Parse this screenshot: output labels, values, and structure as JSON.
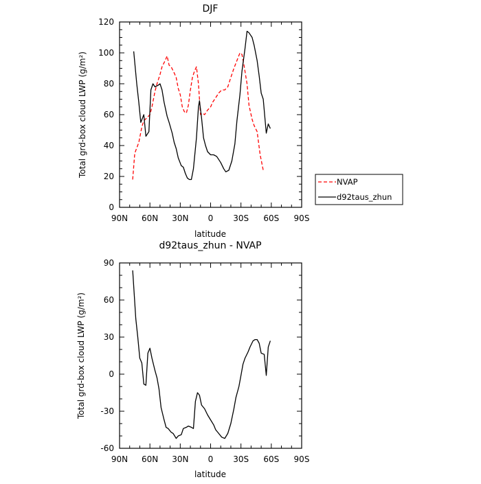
{
  "chart_data": [
    {
      "type": "line",
      "title": "DJF",
      "xlabel": "latitude",
      "ylabel": "Total grd-box cloud LWP (g/m²)",
      "xlim": [
        90,
        -90
      ],
      "ylim": [
        0,
        120
      ],
      "xticks": [
        90,
        60,
        30,
        0,
        -30,
        -60,
        -90
      ],
      "xticklabels": [
        "90N",
        "60N",
        "30N",
        "0",
        "30S",
        "60S",
        "90S"
      ],
      "yticks": [
        0,
        20,
        40,
        60,
        80,
        100,
        120
      ],
      "yticklabels": [
        "0",
        "20",
        "40",
        "60",
        "80",
        "100",
        "120"
      ],
      "grid": false,
      "legend_position": "right",
      "series": [
        {
          "name": "NVAP",
          "color": "#ff0000",
          "dash": "dashed",
          "points": [
            [
              77,
              18
            ],
            [
              75,
              35
            ],
            [
              71,
              42
            ],
            [
              68,
              52
            ],
            [
              66,
              56
            ],
            [
              63,
              58
            ],
            [
              60,
              60
            ],
            [
              58,
              65
            ],
            [
              55,
              75
            ],
            [
              53,
              80
            ],
            [
              50,
              86
            ],
            [
              48,
              91
            ],
            [
              45,
              95
            ],
            [
              43,
              98
            ],
            [
              41,
              92
            ],
            [
              39,
              91
            ],
            [
              36,
              87
            ],
            [
              34,
              84
            ],
            [
              32,
              77
            ],
            [
              30,
              73
            ],
            [
              28,
              65
            ],
            [
              26,
              62
            ],
            [
              24,
              61
            ],
            [
              22,
              66
            ],
            [
              20,
              76
            ],
            [
              18,
              84
            ],
            [
              16,
              88
            ],
            [
              14,
              91
            ],
            [
              12,
              80
            ],
            [
              10,
              60
            ],
            [
              8,
              61
            ],
            [
              6,
              60
            ],
            [
              3,
              63
            ],
            [
              0,
              65
            ],
            [
              -2,
              68
            ],
            [
              -5,
              71
            ],
            [
              -8,
              74
            ],
            [
              -11,
              76
            ],
            [
              -14,
              76
            ],
            [
              -17,
              78
            ],
            [
              -20,
              84
            ],
            [
              -23,
              90
            ],
            [
              -26,
              95
            ],
            [
              -29,
              100
            ],
            [
              -31,
              99
            ],
            [
              -33,
              92
            ],
            [
              -36,
              80
            ],
            [
              -38,
              66
            ],
            [
              -41,
              57
            ],
            [
              -43,
              53
            ],
            [
              -46,
              49
            ],
            [
              -49,
              34
            ],
            [
              -52,
              24
            ]
          ]
        },
        {
          "name": "d92taus_zhun",
          "color": "#000000",
          "dash": "solid",
          "points": [
            [
              76,
              101
            ],
            [
              73,
              80
            ],
            [
              71,
              68
            ],
            [
              69,
              55
            ],
            [
              66,
              60
            ],
            [
              64,
              46
            ],
            [
              61,
              49
            ],
            [
              59,
              76
            ],
            [
              57,
              80
            ],
            [
              55,
              78
            ],
            [
              52,
              79
            ],
            [
              50,
              80
            ],
            [
              48,
              76
            ],
            [
              46,
              68
            ],
            [
              43,
              59
            ],
            [
              41,
              55
            ],
            [
              38,
              48
            ],
            [
              36,
              42
            ],
            [
              34,
              38
            ],
            [
              32,
              32
            ],
            [
              29,
              27
            ],
            [
              27,
              26
            ],
            [
              25,
              22
            ],
            [
              23,
              19
            ],
            [
              21,
              18
            ],
            [
              19,
              18
            ],
            [
              17,
              25
            ],
            [
              14,
              45
            ],
            [
              12,
              65
            ],
            [
              11,
              69
            ],
            [
              9,
              58
            ],
            [
              7,
              45
            ],
            [
              5,
              40
            ],
            [
              3,
              36
            ],
            [
              0,
              34
            ],
            [
              -3,
              34
            ],
            [
              -6,
              33
            ],
            [
              -8,
              31
            ],
            [
              -10,
              29
            ],
            [
              -13,
              25
            ],
            [
              -15,
              23
            ],
            [
              -18,
              24
            ],
            [
              -21,
              30
            ],
            [
              -24,
              41
            ],
            [
              -26,
              56
            ],
            [
              -29,
              73
            ],
            [
              -31,
              88
            ],
            [
              -34,
              103
            ],
            [
              -36,
              114
            ],
            [
              -38,
              113
            ],
            [
              -41,
              110
            ],
            [
              -43,
              105
            ],
            [
              -46,
              95
            ],
            [
              -48,
              85
            ],
            [
              -50,
              74
            ],
            [
              -52,
              70
            ],
            [
              -55,
              48
            ],
            [
              -57,
              54
            ],
            [
              -59,
              51
            ]
          ]
        }
      ]
    },
    {
      "type": "line",
      "title": "d92taus_zhun - NVAP",
      "xlabel": "latitude",
      "ylabel": "Total grd-box cloud LWP (g/m²)",
      "xlim": [
        90,
        -90
      ],
      "ylim": [
        -60,
        90
      ],
      "xticks": [
        90,
        60,
        30,
        0,
        -30,
        -60,
        -90
      ],
      "xticklabels": [
        "90N",
        "60N",
        "30N",
        "0",
        "30S",
        "60S",
        "90S"
      ],
      "yticks": [
        -60,
        -30,
        0,
        30,
        60,
        90
      ],
      "yticklabels": [
        "-60",
        "-30",
        "0",
        "30",
        "60",
        "90"
      ],
      "grid": false,
      "series": [
        {
          "color": "#000000",
          "dash": "solid",
          "points": [
            [
              77,
              84
            ],
            [
              74,
              45
            ],
            [
              72,
              30
            ],
            [
              70,
              13
            ],
            [
              68,
              9
            ],
            [
              66,
              -8
            ],
            [
              64,
              -9
            ],
            [
              62,
              17
            ],
            [
              60,
              21
            ],
            [
              58,
              13
            ],
            [
              55,
              3
            ],
            [
              53,
              -3
            ],
            [
              51,
              -12
            ],
            [
              49,
              -27
            ],
            [
              46,
              -37
            ],
            [
              44,
              -43
            ],
            [
              42,
              -44
            ],
            [
              39,
              -47
            ],
            [
              37,
              -48
            ],
            [
              34,
              -52
            ],
            [
              32,
              -50
            ],
            [
              29,
              -49
            ],
            [
              27,
              -44
            ],
            [
              24,
              -43
            ],
            [
              22,
              -42
            ],
            [
              19,
              -43
            ],
            [
              17,
              -44
            ],
            [
              15,
              -22
            ],
            [
              13,
              -15
            ],
            [
              11,
              -17
            ],
            [
              9,
              -25
            ],
            [
              6,
              -28
            ],
            [
              3,
              -33
            ],
            [
              0,
              -37
            ],
            [
              -3,
              -41
            ],
            [
              -5,
              -45
            ],
            [
              -8,
              -48
            ],
            [
              -11,
              -51
            ],
            [
              -14,
              -52
            ],
            [
              -17,
              -48
            ],
            [
              -20,
              -40
            ],
            [
              -23,
              -28
            ],
            [
              -25,
              -19
            ],
            [
              -28,
              -10
            ],
            [
              -30,
              -1
            ],
            [
              -32,
              8
            ],
            [
              -34,
              13
            ],
            [
              -37,
              18
            ],
            [
              -39,
              22
            ],
            [
              -42,
              27
            ],
            [
              -44,
              28
            ],
            [
              -46,
              28
            ],
            [
              -48,
              25
            ],
            [
              -50,
              17
            ],
            [
              -53,
              16
            ],
            [
              -55,
              -1
            ],
            [
              -57,
              22
            ],
            [
              -59,
              27
            ]
          ]
        }
      ]
    }
  ]
}
